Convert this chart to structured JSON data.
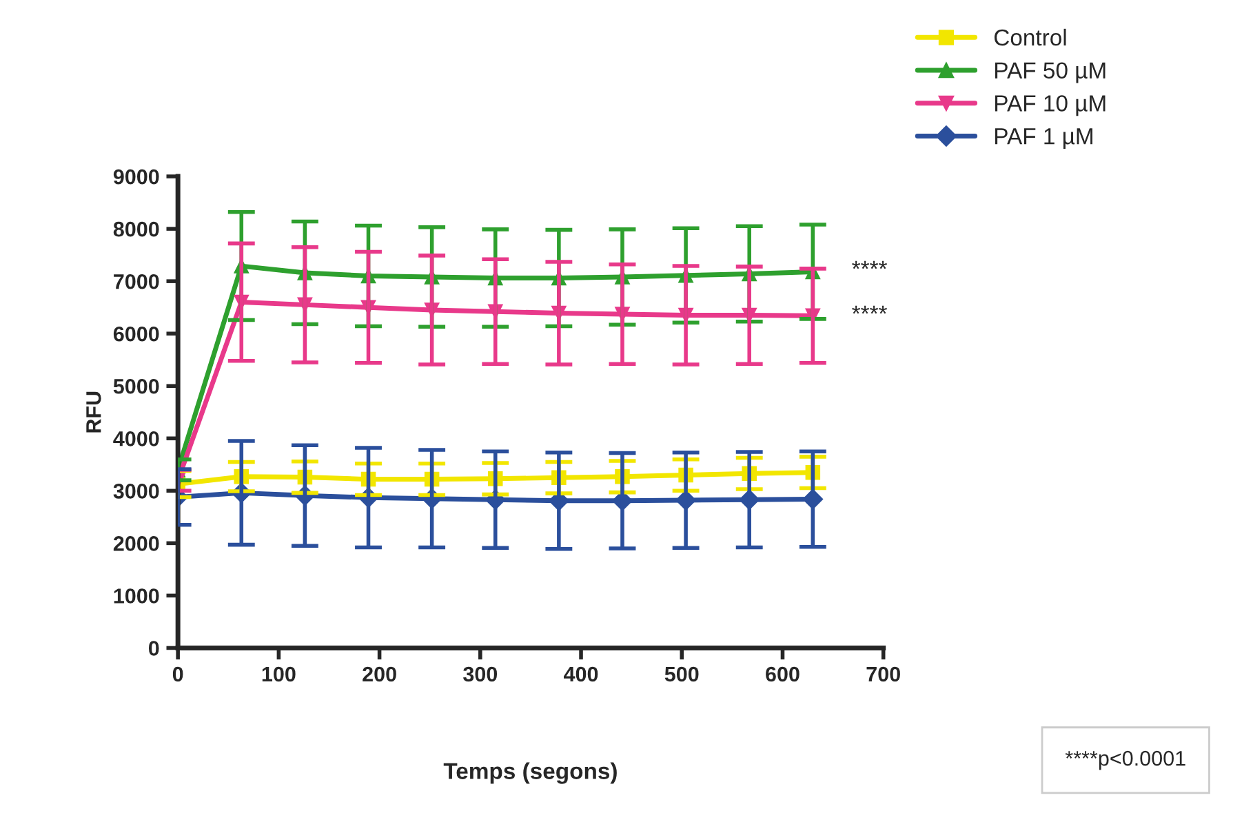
{
  "chart_data": {
    "type": "line",
    "xlabel": "Temps (segons)",
    "ylabel": "RFU",
    "x": [
      0,
      63,
      126,
      189,
      252,
      315,
      378,
      441,
      504,
      567,
      630
    ],
    "series": [
      {
        "name": "Control",
        "color": "#f2e600",
        "marker": "square",
        "values": [
          3130,
          3270,
          3260,
          3220,
          3220,
          3230,
          3250,
          3270,
          3300,
          3330,
          3350
        ],
        "errors": [
          250,
          280,
          300,
          300,
          300,
          300,
          300,
          300,
          300,
          300,
          300
        ]
      },
      {
        "name": "PAF 50 µM",
        "color": "#2ea02e",
        "marker": "triangle",
        "values": [
          3400,
          7290,
          7160,
          7100,
          7080,
          7060,
          7060,
          7080,
          7110,
          7140,
          7180
        ],
        "errors": [
          200,
          1030,
          980,
          960,
          950,
          930,
          920,
          910,
          900,
          910,
          900
        ]
      },
      {
        "name": "PAF 10 µM",
        "color": "#e8398a",
        "marker": "triangle_down",
        "values": [
          3200,
          6600,
          6550,
          6500,
          6450,
          6420,
          6390,
          6370,
          6350,
          6350,
          6340
        ],
        "errors": [
          200,
          1120,
          1100,
          1060,
          1040,
          1000,
          980,
          950,
          940,
          930,
          900
        ]
      },
      {
        "name": "PAF 1 µM",
        "color": "#2b4f9c",
        "marker": "diamond",
        "values": [
          2880,
          2960,
          2910,
          2870,
          2850,
          2830,
          2810,
          2810,
          2820,
          2830,
          2840
        ],
        "errors": [
          530,
          990,
          960,
          950,
          930,
          920,
          920,
          910,
          910,
          910,
          910
        ]
      }
    ],
    "xlim": [
      0,
      700
    ],
    "xticks": [
      0,
      100,
      200,
      300,
      400,
      500,
      600,
      700
    ],
    "ylim": [
      0,
      9000
    ],
    "yticks": [
      0,
      1000,
      2000,
      3000,
      4000,
      5000,
      6000,
      7000,
      8000,
      9000
    ],
    "grid": false,
    "legend": "top right",
    "annotations": [
      "****",
      "****",
      "****p<0.0001"
    ]
  }
}
